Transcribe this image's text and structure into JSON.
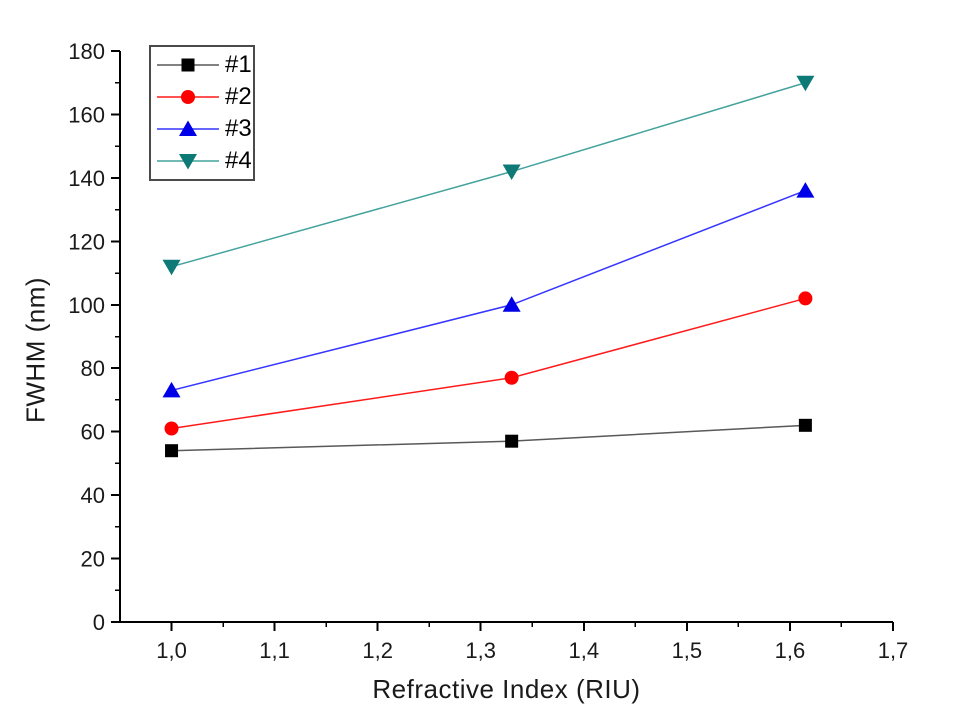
{
  "chart_data": {
    "type": "line",
    "title": "",
    "xlabel": "Refractive Index (RIU)",
    "ylabel": "FWHM (nm)",
    "x": [
      1.0,
      1.33,
      1.615
    ],
    "series": [
      {
        "name": "#1",
        "marker": "square",
        "marker_color": "#000000",
        "line_color": "#595959",
        "values": [
          54,
          57,
          62
        ]
      },
      {
        "name": "#2",
        "marker": "circle",
        "marker_color": "#ff0000",
        "line_color": "#ff1a1a",
        "values": [
          61,
          77,
          102
        ]
      },
      {
        "name": "#3",
        "marker": "triangle-up",
        "marker_color": "#0000e8",
        "line_color": "#3535ff",
        "values": [
          73,
          100,
          136
        ]
      },
      {
        "name": "#4",
        "marker": "triangle-down",
        "marker_color": "#0e7a77",
        "line_color": "#43a39c",
        "values": [
          112,
          142,
          170
        ]
      }
    ],
    "xlim": [
      0.95,
      1.7
    ],
    "ylim": [
      0,
      180
    ],
    "x_ticks": {
      "values": [
        1.0,
        1.1,
        1.2,
        1.3,
        1.4,
        1.5,
        1.6,
        1.7
      ],
      "labels": [
        "1,0",
        "1,1",
        "1,2",
        "1,3",
        "1,4",
        "1,5",
        "1,6",
        "1,7"
      ]
    },
    "y_ticks": {
      "values": [
        0,
        20,
        40,
        60,
        80,
        100,
        120,
        140,
        160,
        180
      ],
      "labels": [
        "0",
        "20",
        "40",
        "60",
        "80",
        "100",
        "120",
        "140",
        "160",
        "180"
      ]
    },
    "x_minor_ticks": [
      1.05,
      1.15,
      1.25,
      1.35,
      1.45,
      1.55,
      1.65
    ],
    "y_minor_ticks": [
      10,
      30,
      50,
      70,
      90,
      110,
      130,
      150,
      170
    ],
    "grid": false,
    "legend_position": "top-left",
    "axis_color": "#000000",
    "background": "#ffffff"
  }
}
